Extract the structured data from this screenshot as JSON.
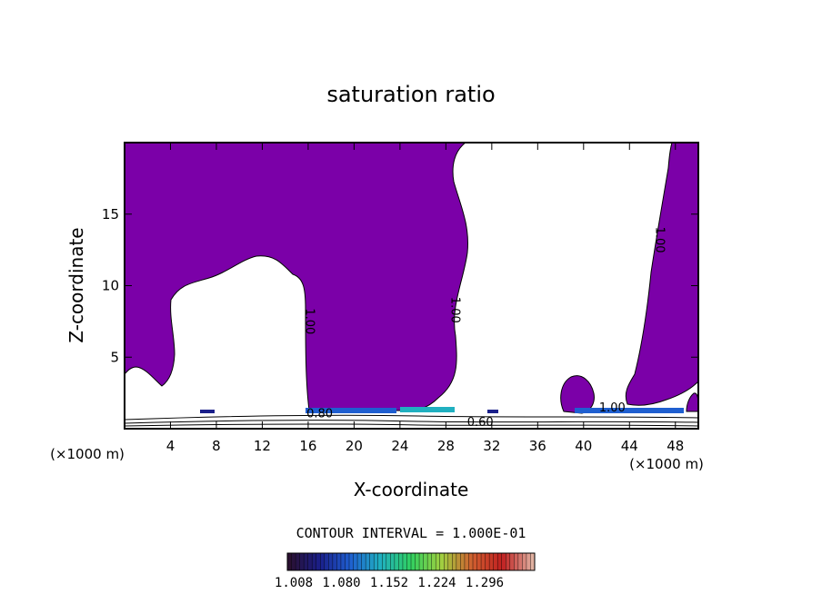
{
  "chart_data": {
    "type": "contour",
    "title": "saturation ratio",
    "xlabel": "X-coordinate",
    "ylabel": "Z-coordinate",
    "x_unit_left": "(×1000 m)",
    "x_unit_right": "(×1000 m)",
    "xlim": [
      0,
      50
    ],
    "ylim": [
      0,
      20
    ],
    "x_ticks": [
      4,
      8,
      12,
      16,
      20,
      24,
      28,
      32,
      36,
      40,
      44,
      48
    ],
    "y_ticks": [
      5,
      10,
      15
    ],
    "contour_interval_text": "CONTOUR INTERVAL = 1.000E-01",
    "fill_color": "#7b00a8",
    "contour_labels": [
      {
        "text": "1.00",
        "x": 15.8,
        "y": 7.5
      },
      {
        "text": "1.00",
        "x": 28.5,
        "y": 8.3
      },
      {
        "text": "1.00",
        "x": 46.3,
        "y": 13.2
      },
      {
        "text": "0.80",
        "x": 17.0,
        "y": 0.8
      },
      {
        "text": "0.60",
        "x": 31.0,
        "y": 0.2
      },
      {
        "text": "1.00",
        "x": 42.5,
        "y": 1.2
      }
    ],
    "colorbar": {
      "tick_labels": [
        "1.008",
        "1.080",
        "1.152",
        "1.224",
        "1.296"
      ],
      "colors": [
        "#2a1030",
        "#1a1f8a",
        "#1f5fd0",
        "#20b0c0",
        "#30d060",
        "#a0d040",
        "#d06030",
        "#c02020",
        "#e0b0a0"
      ]
    }
  }
}
